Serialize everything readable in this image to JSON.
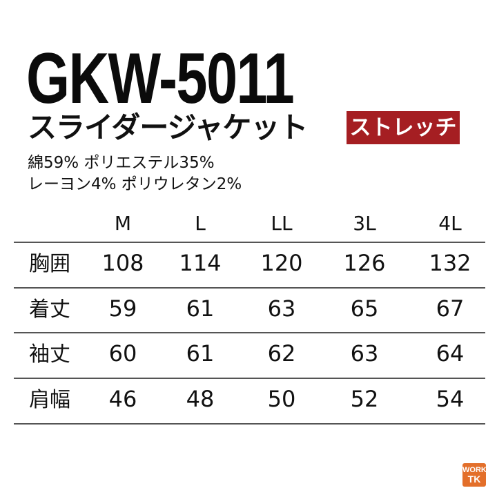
{
  "product": {
    "code": "GKW-5011",
    "name": "スライダージャケット",
    "badge": "ストレッチ",
    "badge_color": "#a51e22",
    "materials": [
      "綿59% ポリエステル35%",
      "レーヨン4% ポリウレタン2%"
    ]
  },
  "size_table": {
    "headers": [
      "M",
      "L",
      "LL",
      "3L",
      "4L"
    ],
    "rows": [
      {
        "label": "胸囲",
        "values": [
          "108",
          "114",
          "120",
          "126",
          "132"
        ]
      },
      {
        "label": "着丈",
        "values": [
          "59",
          "61",
          "63",
          "65",
          "67"
        ]
      },
      {
        "label": "袖丈",
        "values": [
          "60",
          "61",
          "62",
          "63",
          "64"
        ]
      },
      {
        "label": "肩幅",
        "values": [
          "46",
          "48",
          "50",
          "52",
          "54"
        ]
      }
    ]
  },
  "logo": {
    "text_line1": "WORK",
    "text_line2": "TK",
    "color": "#e36f2a"
  }
}
